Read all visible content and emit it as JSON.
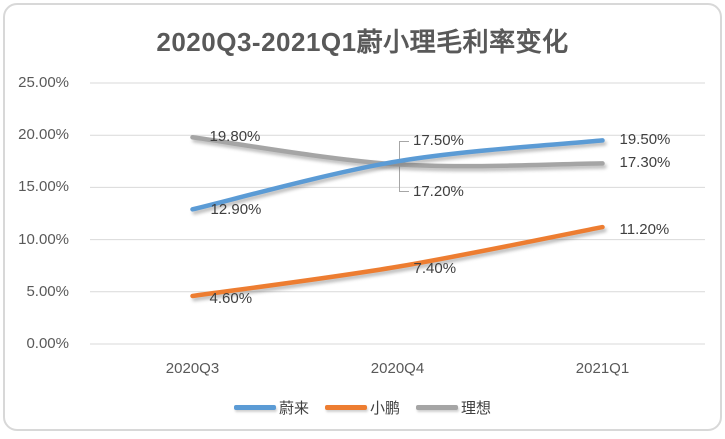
{
  "window": {
    "background": "#ffffff",
    "border_color": "#d8d8d8"
  },
  "chart_data": {
    "type": "line",
    "title": "2020Q3-2021Q1蔚小理毛利率变化",
    "categories": [
      "2020Q3",
      "2020Q4",
      "2021Q1"
    ],
    "series": [
      {
        "id": "nio",
        "name": "蔚来",
        "color": "#5B9BD5",
        "values": [
          12.9,
          17.5,
          19.5
        ],
        "point_labels": [
          "12.90%",
          "17.50%",
          "19.50%"
        ]
      },
      {
        "id": "xpeng",
        "name": "小鹏",
        "color": "#ED7D31",
        "values": [
          4.6,
          7.4,
          11.2
        ],
        "point_labels": [
          "4.60%",
          "7.40%",
          "11.20%"
        ]
      },
      {
        "id": "li",
        "name": "理想",
        "color": "#A5A5A5",
        "values": [
          19.8,
          17.2,
          17.3
        ],
        "point_labels": [
          "19.80%",
          "17.20%",
          "17.30%"
        ]
      }
    ],
    "y_axis": {
      "min": 0,
      "max": 25,
      "tick_values": [
        0,
        5,
        10,
        15,
        20,
        25
      ],
      "tick_labels": [
        "0.00%",
        "5.00%",
        "10.00%",
        "15.00%",
        "20.00%",
        "25.00%"
      ]
    },
    "grid": true,
    "gridline_color": "#D9D9D9",
    "smoothed_lines": true,
    "legend_position": "bottom",
    "annotation_leader_color": "#A6A6A6",
    "text_colors": {
      "title": "#595959",
      "axis": "#595959",
      "data_label": "#3f3f3f"
    }
  }
}
